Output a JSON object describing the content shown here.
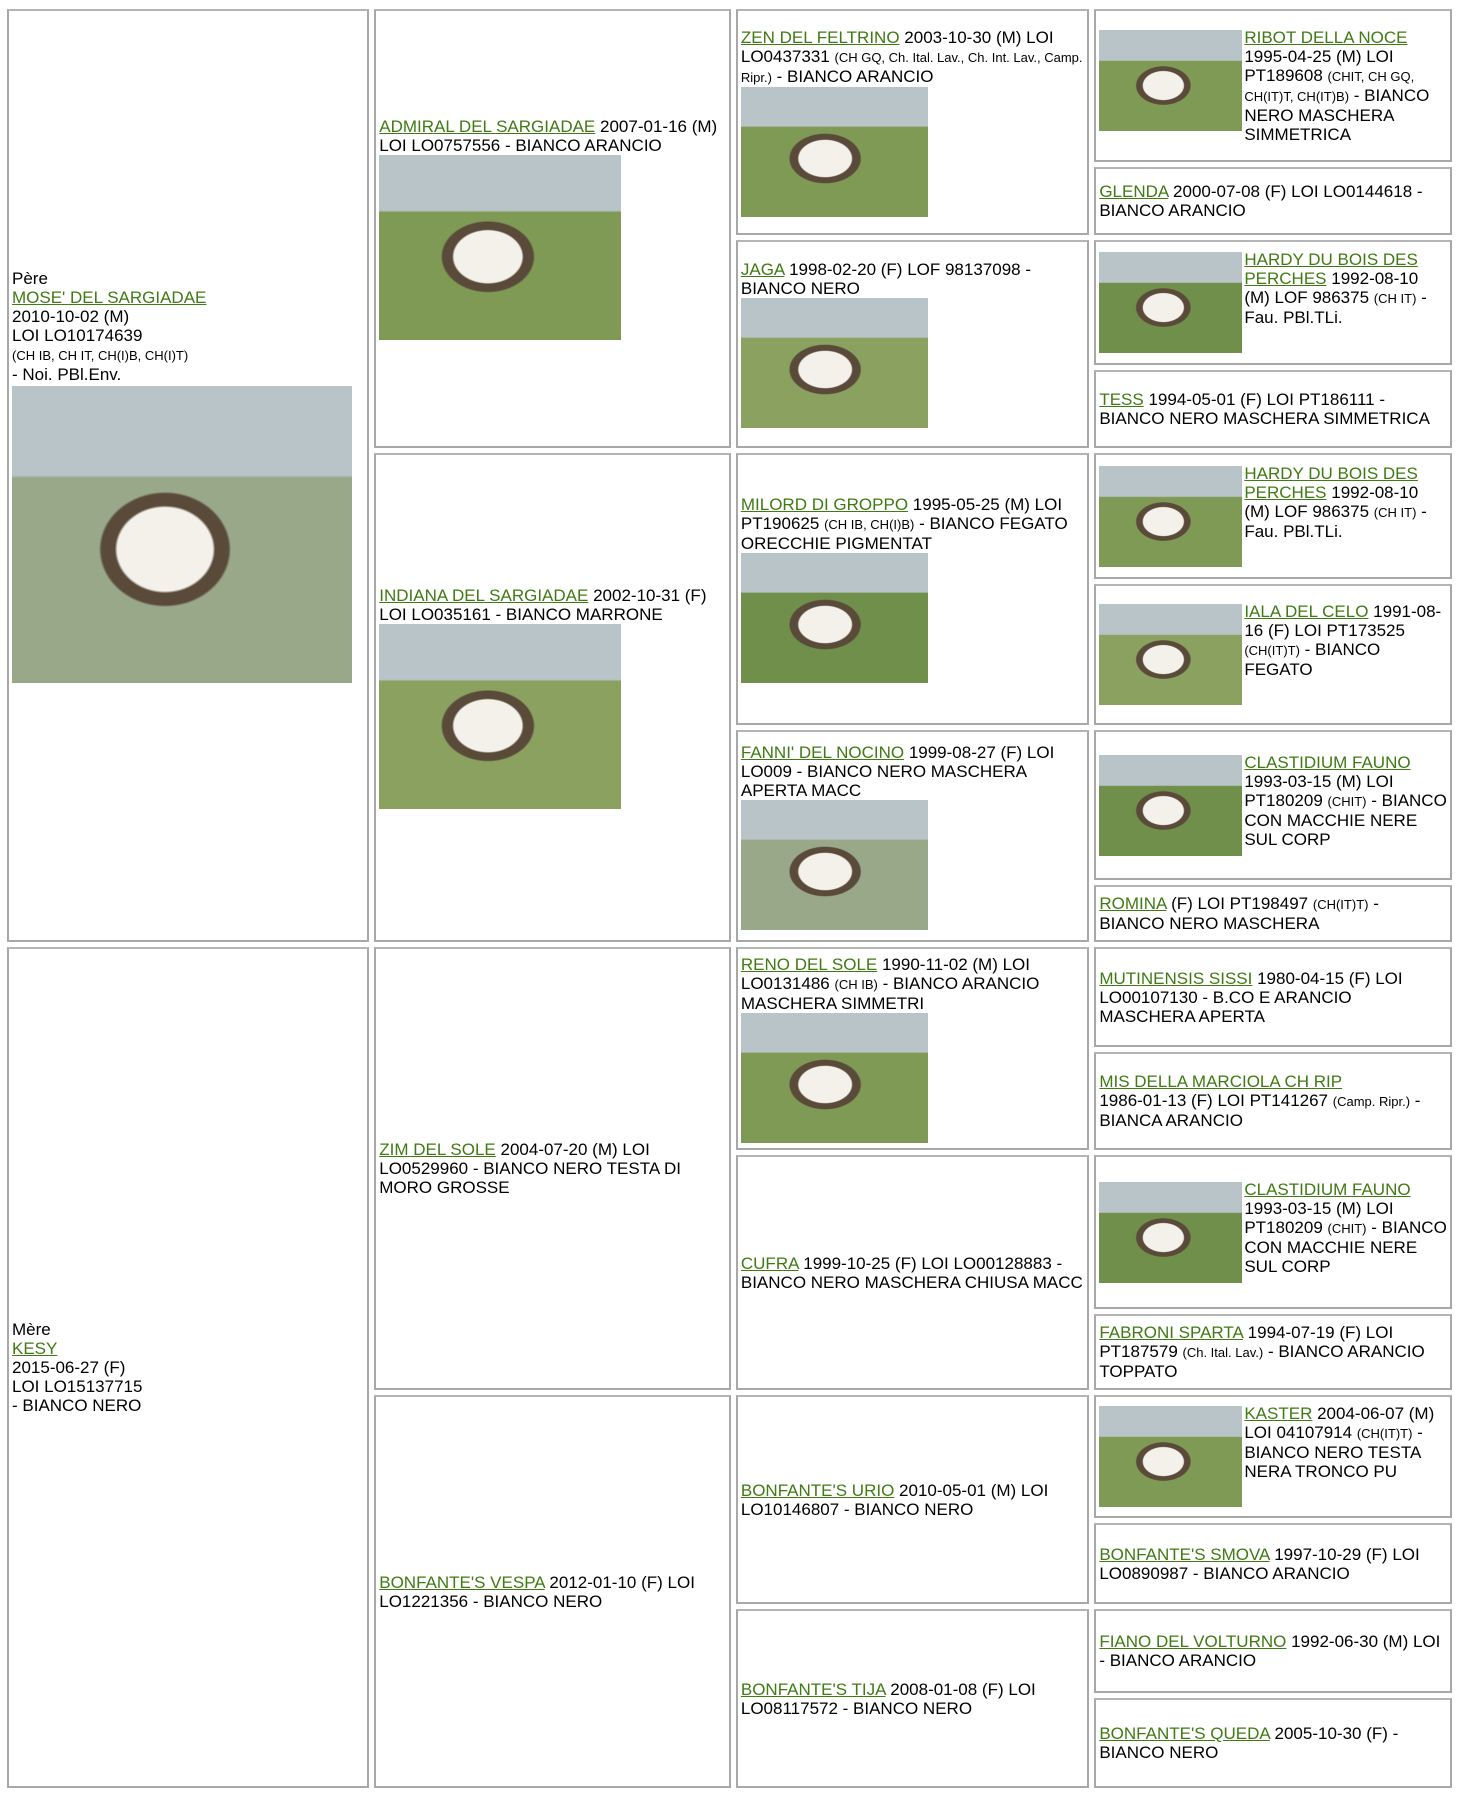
{
  "sire": {
    "label": "Père",
    "name": "MOSE' DEL SARGIADAE",
    "details": "2010-10-02 (M)",
    "reg": "LOI LO10174639",
    "titles": "(CH IB, CH IT, CH(I)B, CH(I)T)",
    "coat": "- Noi. PBl.Env."
  },
  "dam": {
    "label": "Mère",
    "name": "KESY",
    "details": "2015-06-27 (F)",
    "reg": "LOI LO15137715",
    "coat": "- BIANCO NERO"
  },
  "generation2": [
    {
      "name": "ADMIRAL DEL SARGIADAE",
      "info": "2007-01-16 (M) LOI LO0757556 - BIANCO ARANCIO"
    },
    {
      "name": "INDIANA DEL SARGIADAE",
      "info": "2002-10-31 (F) LOI LO035161 - BIANCO MARRONE"
    },
    {
      "name": "ZIM DEL SOLE",
      "info": "2004-07-20 (M) LOI LO0529960 - BIANCO NERO TESTA DI MORO GROSSE"
    },
    {
      "name": "BONFANTE'S VESPA",
      "info": "2012-01-10 (F) LOI LO1221356 - BIANCO NERO"
    }
  ],
  "generation3": [
    {
      "name": "ZEN DEL FELTRINO",
      "info": "2003-10-30 (M) LOI LO0437331",
      "titles": "(CH GQ, Ch. Ital. Lav., Ch. Int. Lav., Camp. Ripr.)",
      "coat": "- BIANCO ARANCIO"
    },
    {
      "name": "JAGA",
      "info": "1998-02-20 (F) LOF 98137098 - BIANCO NERO"
    },
    {
      "name": "MILORD DI GROPPO",
      "info": "1995-05-25 (M) LOI PT190625",
      "titles": "(CH IB, CH(I)B)",
      "coat": "- BIANCO FEGATO ORECCHIE PIGMENTAT"
    },
    {
      "name": "FANNI' DEL NOCINO",
      "info": "1999-08-27 (F) LOI LO009 - BIANCO NERO MASCHERA APERTA MACC"
    },
    {
      "name": "RENO DEL SOLE",
      "info": "1990-11-02 (M) LOI LO0131486",
      "titles": "(CH IB)",
      "coat": "- BIANCO ARANCIO MASCHERA SIMMETRI"
    },
    {
      "name": "CUFRA",
      "info": "1999-10-25 (F) LOI LO00128883 - BIANCO NERO MASCHERA CHIUSA MACC"
    },
    {
      "name": "BONFANTE'S URIO",
      "info": "2010-05-01 (M) LOI LO10146807 - BIANCO NERO"
    },
    {
      "name": "BONFANTE'S TIJA",
      "info": "2008-01-08 (F) LOI LO08117572 - BIANCO NERO"
    }
  ],
  "generation4": [
    {
      "name": "RIBOT DELLA NOCE",
      "info": "1995-04-25 (M) LOI PT189608",
      "titles": "(CHIT, CH GQ, CH(IT)T, CH(IT)B)",
      "coat": "- BIANCO NERO MASCHERA SIMMETRICA"
    },
    {
      "name": "GLENDA",
      "info": "2000-07-08 (F) LOI LO0144618 - BIANCO ARANCIO"
    },
    {
      "name": "HARDY DU BOIS DES PERCHES",
      "info": "1992-08-10 (M) LOF 986375",
      "titles": "(CH IT)",
      "coat": "- Fau. PBl.TLi."
    },
    {
      "name": "TESS",
      "info": "1994-05-01 (F) LOI PT186111 - BIANCO NERO MASCHERA SIMMETRICA"
    },
    {
      "name": "HARDY DU BOIS DES PERCHES",
      "info": "1992-08-10 (M) LOF 986375",
      "titles": "(CH IT)",
      "coat": "- Fau. PBl.TLi."
    },
    {
      "name": "IALA DEL CELO",
      "info": "1991-08-16 (F) LOI PT173525",
      "titles": "(CH(IT)T)",
      "coat": "- BIANCO FEGATO"
    },
    {
      "name": "CLASTIDIUM FAUNO",
      "info": "1993-03-15 (M) LOI PT180209",
      "titles": "(CHIT)",
      "coat": "- BIANCO CON MACCHIE NERE SUL CORP"
    },
    {
      "name": "ROMINA",
      "info": "(F) LOI PT198497",
      "titles": "(CH(IT)T)",
      "coat": "- BIANCO NERO MASCHERA"
    },
    {
      "name": "MUTINENSIS SISSI",
      "info": "1980-04-15 (F) LOI LO00107130 - B.CO E ARANCIO MASCHERA APERTA"
    },
    {
      "name": "MIS DELLA MARCIOLA CH RIP",
      "info": "1986-01-13 (F) LOI PT141267",
      "titles": "(Camp. Ripr.)",
      "coat": "- BIANCA ARANCIO"
    },
    {
      "name": "CLASTIDIUM FAUNO",
      "info": "1993-03-15 (M) LOI PT180209",
      "titles": "(CHIT)",
      "coat": "- BIANCO CON MACCHIE NERE SUL CORP"
    },
    {
      "name": "FABRONI SPARTA",
      "info": "1994-07-19 (F) LOI PT187579",
      "titles": "(Ch. Ital. Lav.)",
      "coat": "- BIANCO ARANCIO TOPPATO"
    },
    {
      "name": "KASTER",
      "info": "2004-06-07 (M) LOI 04107914",
      "titles": "(CH(IT)T)",
      "coat": "- BIANCO NERO TESTA NERA TRONCO PU"
    },
    {
      "name": "BONFANTE'S SMOVA",
      "info": "1997-10-29 (F) LOI LO0890987 - BIANCO ARANCIO"
    },
    {
      "name": "FIANO DEL VOLTURNO",
      "info": "1992-06-30 (M) LOI - BIANCO ARANCIO"
    },
    {
      "name": "BONFANTE'S QUEDA",
      "info": "2005-10-30 (F) - BIANCO NERO"
    }
  ]
}
